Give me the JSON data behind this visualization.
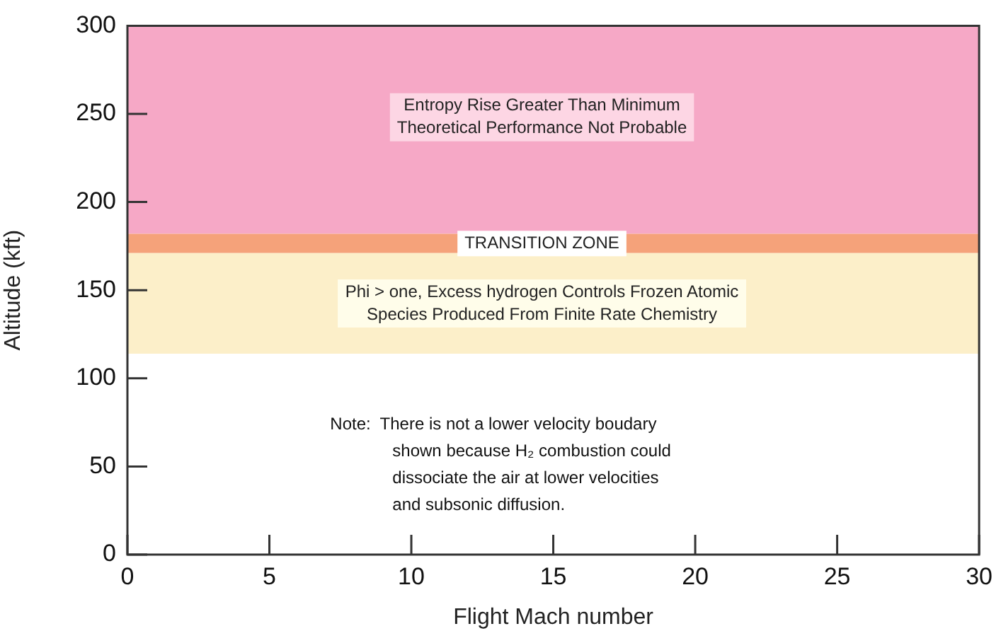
{
  "chart_data": {
    "type": "area",
    "xlabel": "Flight Mach number",
    "ylabel": "Altitude (kft)",
    "xlim": [
      0,
      30
    ],
    "xticks": [
      0,
      5,
      10,
      15,
      20,
      25,
      30
    ],
    "ylim": [
      0,
      300
    ],
    "yticks": [
      0,
      50,
      100,
      150,
      200,
      250,
      300
    ],
    "bands": [
      {
        "axis": "y",
        "from": 182,
        "to": 300,
        "label": "Entropy Rise Greater Than Minimum\nTheoretical Performance Not Probable",
        "color": "#f6a8c6"
      },
      {
        "axis": "y",
        "from": 171,
        "to": 182,
        "label": "TRANSITION ZONE",
        "color": "#f5a27a"
      },
      {
        "axis": "y",
        "from": 114,
        "to": 171,
        "label": "Phi > one, Excess hydrogen Controls Frozen Atomic\nSpecies Produced From Finite Rate Chemistry",
        "color": "#fcefc9"
      }
    ],
    "annotations": [
      "Note:  There is not a lower velocity boudary\nshown because H₂ combustion could\ndissociate the air at lower velocities\nand subsonic diffusion."
    ]
  }
}
